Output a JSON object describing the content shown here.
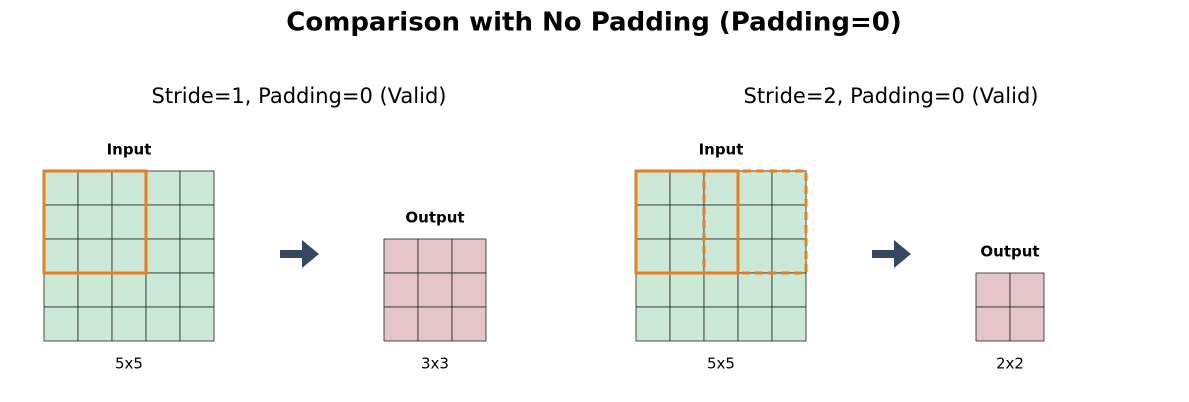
{
  "title": "Comparison with No Padding (Padding=0)",
  "panels": [
    {
      "subtitle": "Stride=1, Padding=0 (Valid)",
      "input_label": "Input",
      "output_label": "Output",
      "input_size": "5x5",
      "output_size": "3x3"
    },
    {
      "subtitle": "Stride=2, Padding=0 (Valid)",
      "input_label": "Input",
      "output_label": "Output",
      "input_size": "5x5",
      "output_size": "2x2"
    }
  ]
}
